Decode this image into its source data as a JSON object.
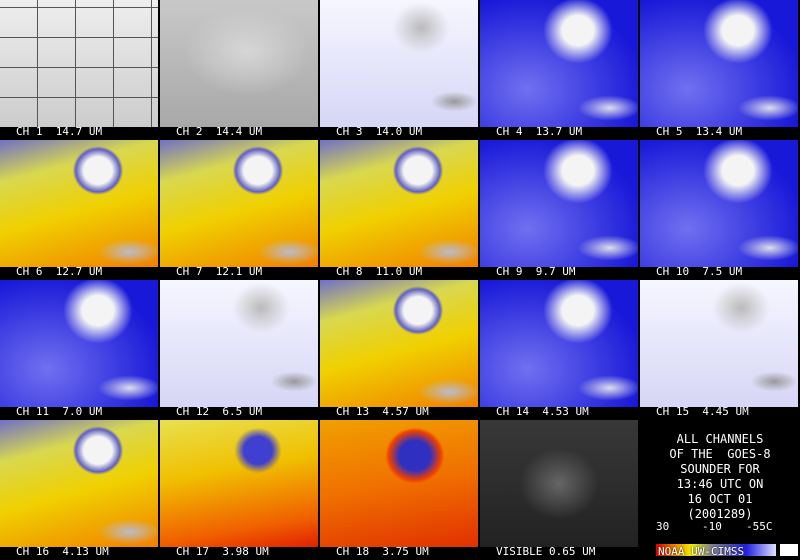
{
  "panels": [
    "CH 1  14.7 UM",
    "CH 2  14.4 UM",
    "CH 3  14.0 UM",
    "CH 4  13.7 UM",
    "CH 5  13.4 UM",
    "CH 6  12.7 UM",
    "CH 7  12.1 UM",
    "CH 8  11.0 UM",
    "CH 9  9.7 UM",
    "CH 10  7.5 UM",
    "CH 11  7.0 UM",
    "CH 12  6.5 UM",
    "CH 13  4.57 UM",
    "CH 14  4.53 UM",
    "CH 15  4.45 UM",
    "CH 16  4.13 UM",
    "CH 17  3.98 UM",
    "CH 18  3.75 UM",
    "VISIBLE 0.65 UM"
  ],
  "info": {
    "lines": [
      "ALL CHANNELS",
      "OF THE  GOES-8",
      "SOUNDER FOR",
      "13:46 UTC ON",
      "16 OCT 01",
      "(2001289)"
    ],
    "scale_labels": [
      "30",
      "-10",
      "-55C"
    ],
    "credit": "NOAA UW-CIMSS"
  }
}
